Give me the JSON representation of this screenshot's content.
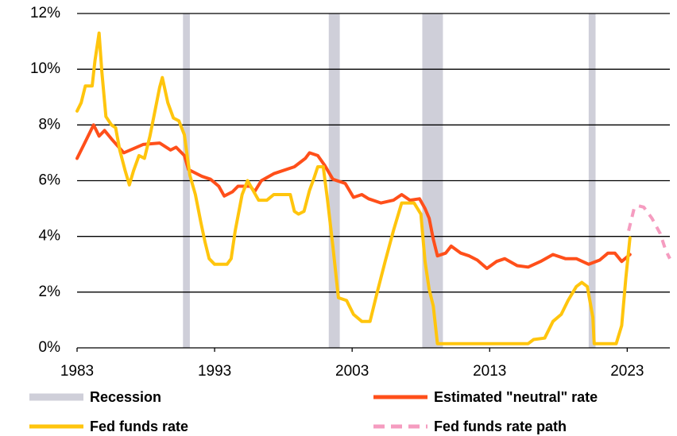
{
  "chart_data": {
    "type": "line",
    "xlim": [
      1983,
      2026.1
    ],
    "xticks": [
      1983,
      1993,
      2003,
      2013,
      2023
    ],
    "ylim": [
      0,
      12
    ],
    "yticks": [
      {
        "value": 0,
        "label": "0%"
      },
      {
        "value": 2,
        "label": "2%"
      },
      {
        "value": 4,
        "label": "4%"
      },
      {
        "value": 6,
        "label": "6%"
      },
      {
        "value": 8,
        "label": "8%"
      },
      {
        "value": 10,
        "label": "10%"
      },
      {
        "value": 12,
        "label": "12%"
      }
    ],
    "grid": true,
    "bands": {
      "name": "Recession",
      "color": "#cfcfd9",
      "ranges": [
        [
          1990.7,
          1991.2
        ],
        [
          2001.3,
          2002.1
        ],
        [
          2008.1,
          2009.6
        ],
        [
          2020.2,
          2020.7
        ]
      ]
    },
    "series": [
      {
        "name": "Estimated \"neutral\" rate",
        "color": "#ff4f1a",
        "dash": false,
        "x": [
          1983.0,
          1983.5,
          1984.2,
          1984.6,
          1985.0,
          1985.5,
          1986.4,
          1987.8,
          1989.0,
          1989.8,
          1990.2,
          1990.8,
          1991.1,
          1992.1,
          1992.7,
          1993.3,
          1993.7,
          1994.3,
          1994.7,
          1995.6,
          1995.9,
          1996.4,
          1997.3,
          1998.8,
          1999.6,
          1999.9,
          2000.5,
          2001.0,
          2001.6,
          2002.5,
          2003.1,
          2003.7,
          2004.2,
          2005.1,
          2006.0,
          2006.6,
          2007.2,
          2007.9,
          2008.3,
          2008.6,
          2008.9,
          2009.2,
          2009.8,
          2010.2,
          2010.9,
          2011.5,
          2012.1,
          2012.8,
          2013.5,
          2014.1,
          2015.0,
          2015.8,
          2016.7,
          2017.6,
          2018.5,
          2019.3,
          2020.2,
          2021.0,
          2021.6,
          2022.1,
          2022.6,
          2023.2
        ],
        "values": [
          6.8,
          7.3,
          8.0,
          7.6,
          7.8,
          7.5,
          7.0,
          7.3,
          7.35,
          7.1,
          7.2,
          6.9,
          6.4,
          6.15,
          6.05,
          5.8,
          5.45,
          5.6,
          5.8,
          5.8,
          5.6,
          6.0,
          6.25,
          6.5,
          6.8,
          7.0,
          6.9,
          6.55,
          6.05,
          5.9,
          5.4,
          5.5,
          5.35,
          5.2,
          5.3,
          5.5,
          5.3,
          5.35,
          5.0,
          4.65,
          3.9,
          3.3,
          3.4,
          3.65,
          3.4,
          3.3,
          3.15,
          2.85,
          3.1,
          3.2,
          2.95,
          2.9,
          3.1,
          3.35,
          3.2,
          3.2,
          3.0,
          3.15,
          3.4,
          3.4,
          3.1,
          3.35
        ]
      },
      {
        "name": "Fed funds rate",
        "color": "#ffc50d",
        "dash": false,
        "x": [
          1983.0,
          1983.3,
          1983.6,
          1984.1,
          1984.3,
          1984.6,
          1984.8,
          1985.1,
          1985.5,
          1985.8,
          1986.1,
          1986.5,
          1986.8,
          1987.1,
          1987.5,
          1987.9,
          1988.3,
          1988.7,
          1989.0,
          1989.2,
          1989.6,
          1990.0,
          1990.4,
          1990.8,
          1991.2,
          1991.6,
          1992.0,
          1992.3,
          1992.6,
          1993.0,
          1993.9,
          1994.2,
          1994.5,
          1995.0,
          1995.4,
          1995.8,
          1996.2,
          1996.8,
          1997.3,
          1998.5,
          1998.8,
          1999.1,
          1999.5,
          1999.9,
          2000.2,
          2000.5,
          2000.9,
          2001.2,
          2001.6,
          2002.0,
          2002.6,
          2003.1,
          2003.7,
          2004.3,
          2004.8,
          2005.4,
          2006.0,
          2006.6,
          2007.5,
          2008.0,
          2008.3,
          2008.6,
          2008.9,
          2009.2,
          2015.8,
          2016.2,
          2017.0,
          2017.6,
          2018.2,
          2018.7,
          2019.3,
          2019.7,
          2020.1,
          2020.5,
          2020.6,
          2022.2,
          2022.6,
          2022.9,
          2023.2
        ],
        "values": [
          8.5,
          8.8,
          9.4,
          9.4,
          10.3,
          11.3,
          9.9,
          8.3,
          8.0,
          7.9,
          7.1,
          6.35,
          5.85,
          6.35,
          6.9,
          6.8,
          7.6,
          8.6,
          9.35,
          9.7,
          8.8,
          8.25,
          8.15,
          7.65,
          6.2,
          5.5,
          4.5,
          3.8,
          3.2,
          3.0,
          3.0,
          3.2,
          4.2,
          5.5,
          6.0,
          5.65,
          5.3,
          5.3,
          5.5,
          5.5,
          4.9,
          4.8,
          4.9,
          5.65,
          6.05,
          6.5,
          6.5,
          5.35,
          3.65,
          1.8,
          1.7,
          1.2,
          0.95,
          0.95,
          1.95,
          3.1,
          4.2,
          5.2,
          5.2,
          4.8,
          3.1,
          2.1,
          1.5,
          0.15,
          0.15,
          0.3,
          0.35,
          0.95,
          1.2,
          1.7,
          2.2,
          2.35,
          2.2,
          1.1,
          0.15,
          0.15,
          0.8,
          2.5,
          3.95
        ]
      },
      {
        "name": "Fed funds rate path",
        "color": "#f59cc0",
        "dash": true,
        "x": [
          2023.1,
          2023.5,
          2023.8,
          2024.2,
          2024.8,
          2025.4,
          2025.8,
          2026.1
        ],
        "values": [
          4.2,
          5.0,
          5.1,
          5.05,
          4.65,
          4.1,
          3.5,
          3.2
        ]
      }
    ]
  }
}
